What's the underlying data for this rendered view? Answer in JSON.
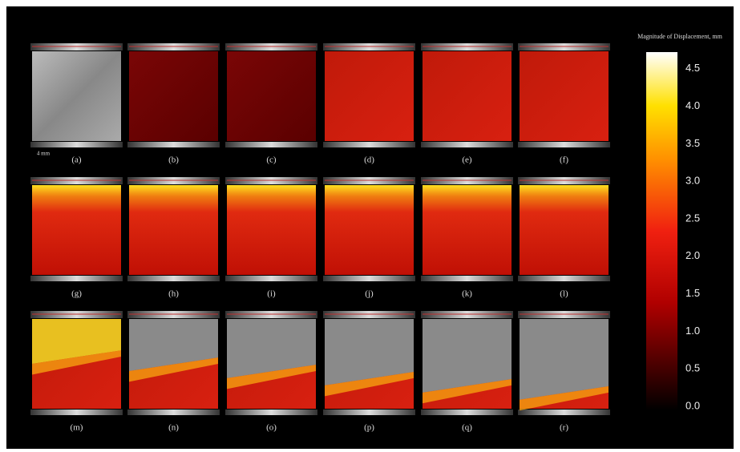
{
  "panels": [
    "(a)",
    "(b)",
    "(c)",
    "(d)",
    "(e)",
    "(f)",
    "(g)",
    "(h)",
    "(i)",
    "(j)",
    "(k)",
    "(l)",
    "(m)",
    "(n)",
    "(o)",
    "(p)",
    "(q)",
    "(r)"
  ],
  "scale_bar": "4 mm",
  "colorbar": {
    "title": "Magnitude of Displacement, mm",
    "ticks": [
      "0.0",
      "0.5",
      "1.0",
      "1.5",
      "2.0",
      "2.5",
      "3.0",
      "3.5",
      "4.0",
      "4.5"
    ]
  }
}
